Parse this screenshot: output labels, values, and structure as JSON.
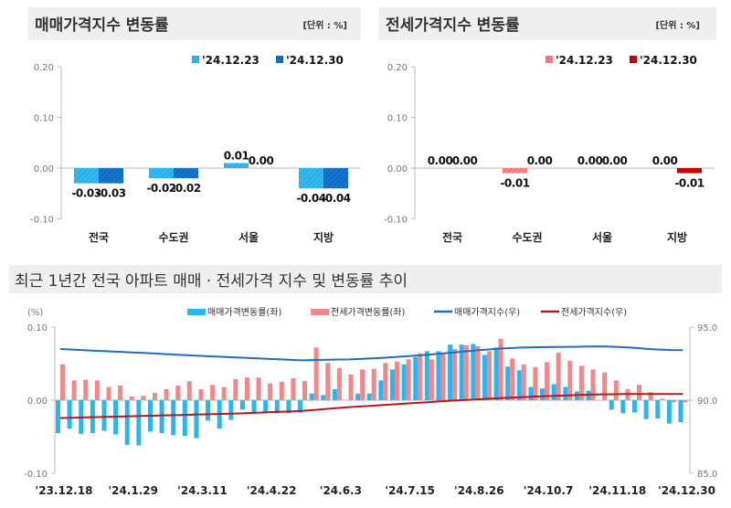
{
  "chart_data": [
    {
      "type": "bar",
      "title": "매매가격지수 변동률",
      "unit_note": "[단위 : %]",
      "categories": [
        "전국",
        "수도권",
        "서울",
        "지방"
      ],
      "ylim": [
        -0.1,
        0.2
      ],
      "yticks": [
        "0.20",
        "0.10",
        "0.00",
        "-0.10"
      ],
      "legend_position": "top-right",
      "series": [
        {
          "name": "'24.12.23",
          "color": "#29b2ea",
          "values": [
            -0.03,
            -0.02,
            0.01,
            -0.04
          ],
          "labels": [
            "-0.03",
            "-0.02",
            "0.01",
            "-0.04"
          ]
        },
        {
          "name": "'24.12.30",
          "color": "#0d6cc4",
          "values": [
            -0.03,
            -0.02,
            0.0,
            -0.04
          ],
          "labels": [
            "-0.03",
            "-0.02",
            "0.00",
            "-0.04"
          ]
        }
      ]
    },
    {
      "type": "bar",
      "title": "전세가격지수 변동률",
      "unit_note": "[단위 : %]",
      "categories": [
        "전국",
        "수도권",
        "서울",
        "지방"
      ],
      "ylim": [
        -0.1,
        0.2
      ],
      "yticks": [
        "0.20",
        "0.10",
        "0.00",
        "-0.10"
      ],
      "legend_position": "top-right",
      "series": [
        {
          "name": "'24.12.23",
          "color": "#f2777a",
          "values": [
            0.0,
            -0.01,
            0.0,
            0.0
          ],
          "labels": [
            "0.00",
            "-0.01",
            "0.00",
            "0.00"
          ]
        },
        {
          "name": "'24.12.30",
          "color": "#c40000",
          "values": [
            0.0,
            0.0,
            0.0,
            -0.01
          ],
          "labels": [
            "0.00",
            "0.00",
            "0.00",
            "-0.01"
          ]
        }
      ]
    },
    {
      "type": "bar+line",
      "title": "최근 1년간 전국 아파트 매매 · 전세가격 지수 및 변동률 추이",
      "ylabel_left": "(%)",
      "ylim_left": [
        -0.1,
        0.1
      ],
      "yticks_left": [
        "0.10",
        "0.00",
        "-0.10"
      ],
      "ylim_right": [
        85.0,
        95.0
      ],
      "yticks_right": [
        "95.0",
        "90.0",
        "85.0"
      ],
      "x_tick_labels": [
        "'23.12.18",
        "'24.1.29",
        "'24.3.11",
        "'24.4.22",
        "'24.6.3",
        "'24.7.15",
        "'24.8.26",
        "'24.10.7",
        "'24.11.18",
        "'24.12.30"
      ],
      "legend_position": "top",
      "series": [
        {
          "name": "매매가격변동률(좌)",
          "kind": "bar",
          "axis": "left",
          "color": "#2bb5ef",
          "values": [
            -0.045,
            -0.039,
            -0.046,
            -0.045,
            -0.042,
            -0.047,
            -0.061,
            -0.062,
            -0.043,
            -0.045,
            -0.048,
            -0.049,
            -0.052,
            -0.028,
            -0.039,
            -0.027,
            -0.013,
            -0.018,
            -0.017,
            -0.018,
            -0.018,
            -0.017,
            0.009,
            0.007,
            0.015,
            0.0,
            0.009,
            0.009,
            0.027,
            0.042,
            0.049,
            0.059,
            0.067,
            0.067,
            0.076,
            0.076,
            0.077,
            0.062,
            0.072,
            0.046,
            0.041,
            0.018,
            0.016,
            0.022,
            0.018,
            0.012,
            0.013,
            0.0,
            -0.013,
            -0.018,
            -0.017,
            -0.026,
            -0.025,
            -0.032,
            -0.03
          ]
        },
        {
          "name": "전세가격변동률(좌)",
          "kind": "bar",
          "axis": "left",
          "color": "#f4868a",
          "values": [
            0.049,
            0.027,
            0.028,
            0.027,
            0.018,
            0.02,
            0.005,
            0.006,
            0.01,
            0.015,
            0.02,
            0.026,
            0.015,
            0.021,
            0.018,
            0.029,
            0.031,
            0.031,
            0.023,
            0.025,
            0.03,
            0.026,
            0.072,
            0.051,
            0.044,
            0.035,
            0.042,
            0.043,
            0.051,
            0.053,
            0.056,
            0.064,
            0.056,
            0.063,
            0.07,
            0.075,
            0.074,
            0.067,
            0.084,
            0.057,
            0.049,
            0.045,
            0.052,
            0.065,
            0.054,
            0.047,
            0.042,
            0.038,
            0.027,
            0.015,
            0.021,
            0.011,
            0.002,
            -0.003,
            -0.003
          ]
        },
        {
          "name": "매매가격지수(우)",
          "kind": "line",
          "axis": "right",
          "color": "#1f6dbd",
          "values": [
            93.5,
            93.46,
            93.42,
            93.38,
            93.35,
            93.31,
            93.27,
            93.24,
            93.2,
            93.16,
            93.12,
            93.08,
            93.04,
            93.0,
            92.97,
            92.93,
            92.9,
            92.87,
            92.83,
            92.8,
            92.76,
            92.73,
            92.75,
            92.76,
            92.78,
            92.79,
            92.82,
            92.86,
            92.9,
            92.95,
            93.0,
            93.06,
            93.12,
            93.19,
            93.26,
            93.33,
            93.4,
            93.46,
            93.52,
            93.56,
            93.6,
            93.62,
            93.63,
            93.64,
            93.65,
            93.66,
            93.67,
            93.68,
            93.66,
            93.62,
            93.57,
            93.5,
            93.46,
            93.43,
            93.42
          ]
        },
        {
          "name": "전세가격지수(우)",
          "kind": "line",
          "axis": "right",
          "color": "#b3191c",
          "values": [
            88.78,
            88.8,
            88.82,
            88.84,
            88.86,
            88.88,
            88.9,
            88.92,
            88.94,
            88.96,
            88.98,
            89.0,
            89.02,
            89.04,
            89.06,
            89.08,
            89.11,
            89.14,
            89.17,
            89.2,
            89.23,
            89.27,
            89.33,
            89.4,
            89.46,
            89.52,
            89.57,
            89.62,
            89.67,
            89.72,
            89.77,
            89.82,
            89.87,
            89.92,
            89.97,
            90.01,
            90.05,
            90.09,
            90.13,
            90.17,
            90.2,
            90.24,
            90.27,
            90.3,
            90.33,
            90.36,
            90.38,
            90.4,
            90.41,
            90.42,
            90.42,
            90.42,
            90.42,
            90.42,
            90.42
          ]
        }
      ]
    }
  ]
}
